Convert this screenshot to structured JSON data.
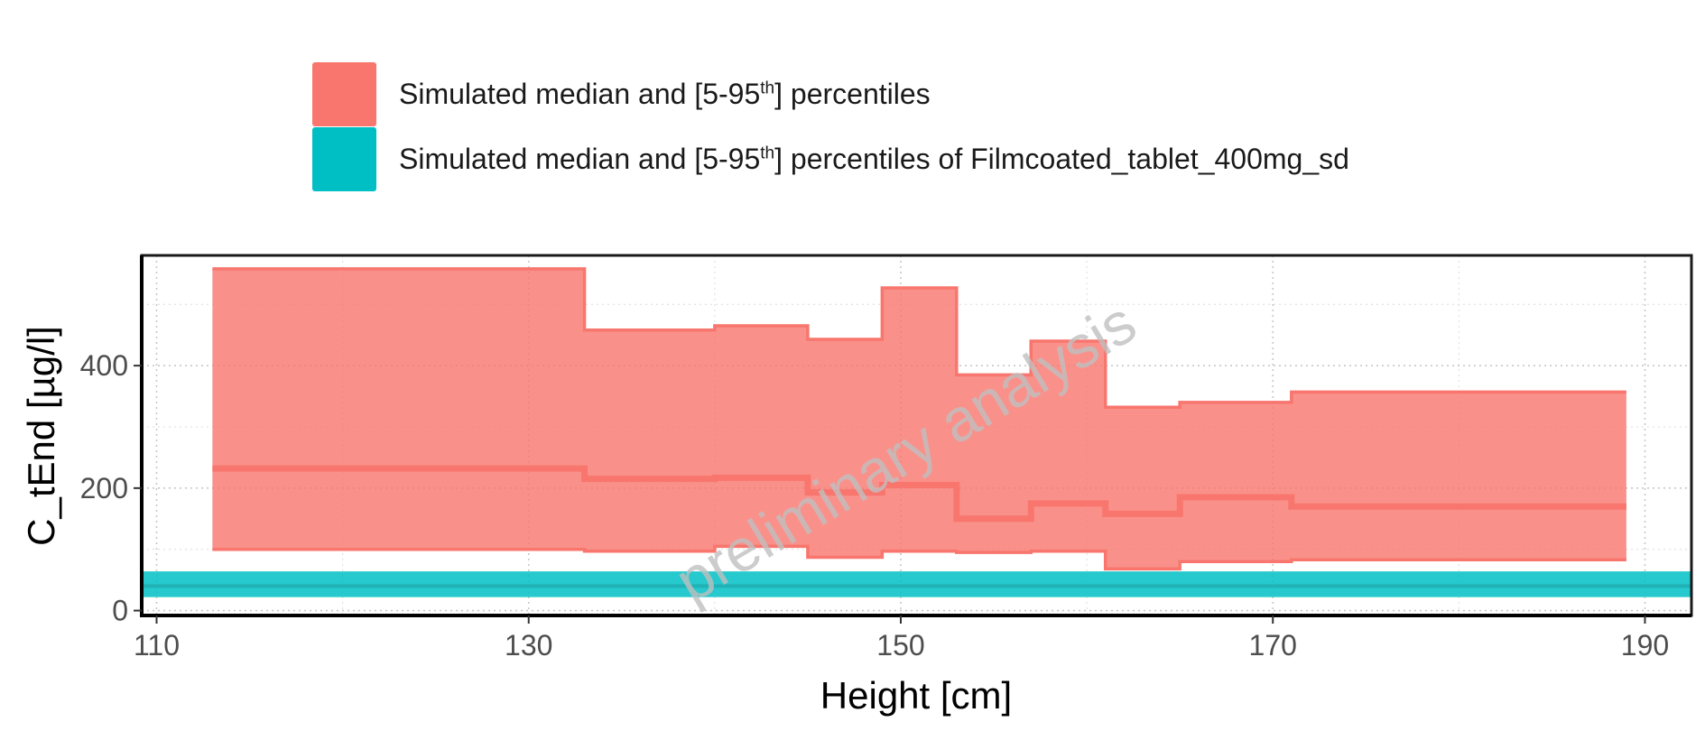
{
  "chart_data": {
    "type": "area",
    "xlabel": "Height [cm]",
    "ylabel": "C_tEnd [µg/l]",
    "xlim": [
      109.2,
      192.5
    ],
    "ylim": [
      -8,
      580
    ],
    "x_ticks": [
      "110",
      "130",
      "150",
      "170",
      "190"
    ],
    "x_tick_values": [
      110,
      130,
      150,
      170,
      190
    ],
    "y_ticks": [
      "0",
      "200",
      "400"
    ],
    "y_tick_values": [
      0,
      200,
      400
    ],
    "grid": true,
    "legend_position": "top",
    "watermark": "preliminary analysis",
    "series": [
      {
        "name": "Simulated median and [5-95th] percentiles",
        "color": "#F8766D",
        "kind": "step-band",
        "bin_edges": [
          113,
          133,
          140,
          145,
          149,
          153,
          157,
          161,
          165,
          171,
          189
        ],
        "median": [
          232,
          215,
          217,
          193,
          205,
          150,
          175,
          158,
          185,
          170
        ],
        "p5": [
          100,
          97,
          105,
          87,
          97,
          95,
          97,
          68,
          80,
          83
        ],
        "p95": [
          558,
          458,
          465,
          443,
          527,
          385,
          440,
          332,
          340,
          357
        ]
      },
      {
        "name": "Simulated median and [5-95th] percentiles of Filmcoated_tablet_400mg_sd",
        "color": "#00BFC4",
        "kind": "constant-band",
        "median": 40,
        "p5": 22,
        "p95": 64
      }
    ]
  },
  "legend": [
    {
      "main": "Simulated median and [5-95",
      "sup": "th",
      "rest": "] percentiles",
      "color": "#F8766D"
    },
    {
      "main": "Simulated median and [5-95",
      "sup": "th",
      "rest": "] percentiles of Filmcoated_tablet_400mg_sd",
      "color": "#00BFC4"
    }
  ]
}
